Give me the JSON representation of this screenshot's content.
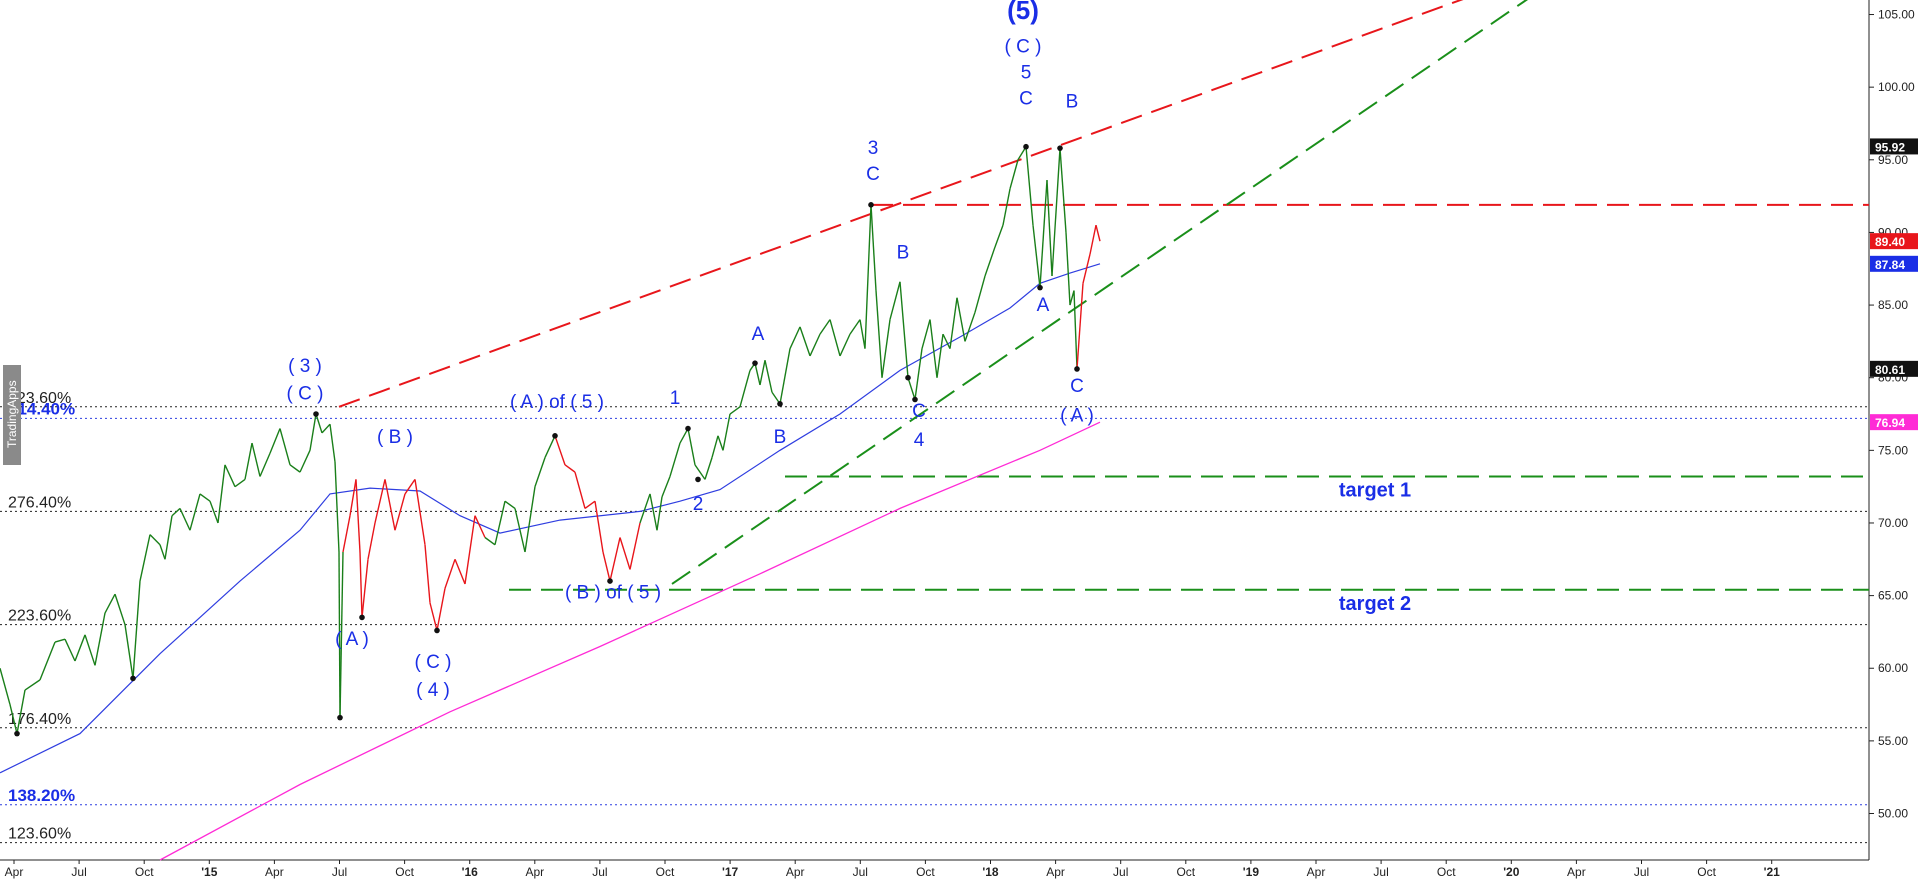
{
  "watermark": "TradingApps",
  "chart_data": {
    "type": "line",
    "title": "",
    "xlabel": "",
    "ylabel": "",
    "ylim": [
      46.8,
      106.0
    ],
    "x_ticks": [
      "Apr",
      "Jul",
      "Oct",
      "'15",
      "Apr",
      "Jul",
      "Oct",
      "'16",
      "Apr",
      "Jul",
      "Oct",
      "'17",
      "Apr",
      "Jul",
      "Oct",
      "'18",
      "Apr",
      "Jul",
      "Oct",
      "'19",
      "Apr",
      "Jul",
      "Oct",
      "'20",
      "Apr",
      "Jul",
      "Oct",
      "'21"
    ],
    "y_ticks": [
      50,
      55,
      60,
      65,
      70,
      75,
      80,
      85,
      90,
      95,
      100,
      105
    ],
    "y_tick_labels": [
      "50.00",
      "55.00",
      "60.00",
      "65.00",
      "70.00",
      "75.00",
      "80.00",
      "85.00",
      "90.00",
      "95.00",
      "100.00",
      "105.00"
    ],
    "price_tags": [
      {
        "label": "95.92",
        "value": 95.92,
        "color": "#111111"
      },
      {
        "label": "89.40",
        "value": 89.4,
        "color": "#e8161b"
      },
      {
        "label": "87.84",
        "value": 87.84,
        "color": "#1a2ee6"
      },
      {
        "label": "80.61",
        "value": 80.61,
        "color": "#111111"
      },
      {
        "label": "76.94",
        "value": 76.94,
        "color": "#ff2bd6"
      }
    ],
    "fib_levels": [
      {
        "label": "314.40%",
        "value": 77.2,
        "style": "blue"
      },
      {
        "label": "323.60%",
        "value": 78.0,
        "style": "black"
      },
      {
        "label": "276.40%",
        "value": 70.8,
        "style": "black"
      },
      {
        "label": "223.60%",
        "value": 63.0,
        "style": "black"
      },
      {
        "label": "176.40%",
        "value": 55.9,
        "style": "black"
      },
      {
        "label": "138.20%",
        "value": 50.6,
        "style": "blue"
      },
      {
        "label": "123.60%",
        "value": 48.0,
        "style": "black"
      }
    ],
    "targets": [
      {
        "label": "target 1",
        "value": 73.2
      },
      {
        "label": "target 2",
        "value": 65.4
      }
    ],
    "resistance_value": 91.9,
    "price_series": [
      {
        "t": 0,
        "v": 60.0
      },
      {
        "t": 10,
        "v": 57.5
      },
      {
        "t": 17,
        "v": 55.5
      },
      {
        "t": 25,
        "v": 58.5
      },
      {
        "t": 40,
        "v": 59.2
      },
      {
        "t": 55,
        "v": 61.8
      },
      {
        "t": 65,
        "v": 62.0
      },
      {
        "t": 75,
        "v": 60.5
      },
      {
        "t": 85,
        "v": 62.3
      },
      {
        "t": 95,
        "v": 60.2
      },
      {
        "t": 105,
        "v": 63.8
      },
      {
        "t": 115,
        "v": 65.1
      },
      {
        "t": 125,
        "v": 63.0
      },
      {
        "t": 133,
        "v": 59.3
      },
      {
        "t": 140,
        "v": 66.0
      },
      {
        "t": 150,
        "v": 69.2
      },
      {
        "t": 160,
        "v": 68.5
      },
      {
        "t": 165,
        "v": 67.5
      },
      {
        "t": 172,
        "v": 70.5
      },
      {
        "t": 180,
        "v": 71.0
      },
      {
        "t": 190,
        "v": 69.5
      },
      {
        "t": 200,
        "v": 72.0
      },
      {
        "t": 210,
        "v": 71.5
      },
      {
        "t": 218,
        "v": 70.0
      },
      {
        "t": 225,
        "v": 74.0
      },
      {
        "t": 235,
        "v": 72.5
      },
      {
        "t": 245,
        "v": 73.0
      },
      {
        "t": 252,
        "v": 75.5
      },
      {
        "t": 260,
        "v": 73.2
      },
      {
        "t": 270,
        "v": 74.8
      },
      {
        "t": 280,
        "v": 76.5
      },
      {
        "t": 290,
        "v": 74.0
      },
      {
        "t": 300,
        "v": 73.5
      },
      {
        "t": 310,
        "v": 75.0
      },
      {
        "t": 316,
        "v": 77.5
      },
      {
        "t": 322,
        "v": 76.2
      },
      {
        "t": 330,
        "v": 76.8
      },
      {
        "t": 335,
        "v": 74.2
      },
      {
        "t": 339,
        "v": 68.0
      },
      {
        "t": 340,
        "v": 56.6
      },
      {
        "t": 343,
        "v": 68.0
      },
      {
        "t": 350,
        "v": 70.5
      },
      {
        "t": 356,
        "v": 73.0
      },
      {
        "t": 360,
        "v": 68.0
      },
      {
        "t": 362,
        "v": 63.5
      },
      {
        "t": 368,
        "v": 67.5
      },
      {
        "t": 375,
        "v": 70.0
      },
      {
        "t": 385,
        "v": 73.0
      },
      {
        "t": 395,
        "v": 69.5
      },
      {
        "t": 405,
        "v": 72.0
      },
      {
        "t": 415,
        "v": 73.0
      },
      {
        "t": 425,
        "v": 68.5
      },
      {
        "t": 430,
        "v": 64.5
      },
      {
        "t": 437,
        "v": 62.6
      },
      {
        "t": 445,
        "v": 65.5
      },
      {
        "t": 455,
        "v": 67.5
      },
      {
        "t": 465,
        "v": 65.8
      },
      {
        "t": 475,
        "v": 70.5
      },
      {
        "t": 485,
        "v": 69.0
      },
      {
        "t": 495,
        "v": 68.5
      },
      {
        "t": 505,
        "v": 71.5
      },
      {
        "t": 515,
        "v": 71.0
      },
      {
        "t": 525,
        "v": 68.0
      },
      {
        "t": 535,
        "v": 72.5
      },
      {
        "t": 545,
        "v": 74.5
      },
      {
        "t": 555,
        "v": 76.0
      },
      {
        "t": 565,
        "v": 74.0
      },
      {
        "t": 575,
        "v": 73.5
      },
      {
        "t": 585,
        "v": 71.0
      },
      {
        "t": 595,
        "v": 71.5
      },
      {
        "t": 603,
        "v": 68.0
      },
      {
        "t": 610,
        "v": 66.0
      },
      {
        "t": 620,
        "v": 69.0
      },
      {
        "t": 630,
        "v": 66.8
      },
      {
        "t": 640,
        "v": 70.0
      },
      {
        "t": 650,
        "v": 72.0
      },
      {
        "t": 657,
        "v": 69.5
      },
      {
        "t": 662,
        "v": 71.8
      },
      {
        "t": 670,
        "v": 73.2
      },
      {
        "t": 680,
        "v": 75.5
      },
      {
        "t": 688,
        "v": 76.5
      },
      {
        "t": 695,
        "v": 74.0
      },
      {
        "t": 705,
        "v": 73.0
      },
      {
        "t": 712,
        "v": 74.5
      },
      {
        "t": 718,
        "v": 76.0
      },
      {
        "t": 723,
        "v": 75.0
      },
      {
        "t": 730,
        "v": 77.5
      },
      {
        "t": 740,
        "v": 78.0
      },
      {
        "t": 750,
        "v": 80.5
      },
      {
        "t": 755,
        "v": 81.0
      },
      {
        "t": 760,
        "v": 79.5
      },
      {
        "t": 765,
        "v": 81.2
      },
      {
        "t": 772,
        "v": 79.0
      },
      {
        "t": 780,
        "v": 78.2
      },
      {
        "t": 790,
        "v": 82.0
      },
      {
        "t": 800,
        "v": 83.5
      },
      {
        "t": 810,
        "v": 81.5
      },
      {
        "t": 820,
        "v": 83.0
      },
      {
        "t": 830,
        "v": 84.0
      },
      {
        "t": 840,
        "v": 81.5
      },
      {
        "t": 850,
        "v": 83.0
      },
      {
        "t": 860,
        "v": 84.0
      },
      {
        "t": 865,
        "v": 82.0
      },
      {
        "t": 871,
        "v": 91.9
      },
      {
        "t": 876,
        "v": 86.0
      },
      {
        "t": 882,
        "v": 80.0
      },
      {
        "t": 890,
        "v": 84.0
      },
      {
        "t": 900,
        "v": 86.6
      },
      {
        "t": 908,
        "v": 80.0
      },
      {
        "t": 915,
        "v": 78.5
      },
      {
        "t": 922,
        "v": 82.0
      },
      {
        "t": 930,
        "v": 84.0
      },
      {
        "t": 937,
        "v": 80.0
      },
      {
        "t": 943,
        "v": 83.0
      },
      {
        "t": 950,
        "v": 82.0
      },
      {
        "t": 957,
        "v": 85.5
      },
      {
        "t": 965,
        "v": 82.5
      },
      {
        "t": 975,
        "v": 84.5
      },
      {
        "t": 985,
        "v": 87.0
      },
      {
        "t": 995,
        "v": 89.0
      },
      {
        "t": 1003,
        "v": 90.5
      },
      {
        "t": 1010,
        "v": 93.0
      },
      {
        "t": 1018,
        "v": 95.0
      },
      {
        "t": 1026,
        "v": 95.9
      },
      {
        "t": 1033,
        "v": 90.5
      },
      {
        "t": 1040,
        "v": 86.2
      },
      {
        "t": 1047,
        "v": 93.6
      },
      {
        "t": 1052,
        "v": 87.0
      },
      {
        "t": 1060,
        "v": 95.8
      },
      {
        "t": 1066,
        "v": 90.0
      },
      {
        "t": 1070,
        "v": 85.0
      },
      {
        "t": 1074,
        "v": 86.0
      },
      {
        "t": 1077,
        "v": 80.6
      },
      {
        "t": 1083,
        "v": 86.5
      },
      {
        "t": 1090,
        "v": 88.5
      },
      {
        "t": 1096,
        "v": 90.5
      },
      {
        "t": 1100,
        "v": 89.4
      }
    ],
    "ma_blue": [
      {
        "t": 0,
        "v": 52.8
      },
      {
        "t": 80,
        "v": 55.5
      },
      {
        "t": 160,
        "v": 61.0
      },
      {
        "t": 240,
        "v": 66.0
      },
      {
        "t": 300,
        "v": 69.5
      },
      {
        "t": 330,
        "v": 72.0
      },
      {
        "t": 370,
        "v": 72.4
      },
      {
        "t": 420,
        "v": 72.2
      },
      {
        "t": 460,
        "v": 70.5
      },
      {
        "t": 500,
        "v": 69.3
      },
      {
        "t": 560,
        "v": 70.2
      },
      {
        "t": 640,
        "v": 70.8
      },
      {
        "t": 680,
        "v": 71.5
      },
      {
        "t": 720,
        "v": 72.3
      },
      {
        "t": 780,
        "v": 75.0
      },
      {
        "t": 840,
        "v": 77.5
      },
      {
        "t": 900,
        "v": 80.5
      },
      {
        "t": 960,
        "v": 82.8
      },
      {
        "t": 1010,
        "v": 84.8
      },
      {
        "t": 1040,
        "v": 86.5
      },
      {
        "t": 1070,
        "v": 87.2
      },
      {
        "t": 1100,
        "v": 87.84
      }
    ],
    "ma_pink": [
      {
        "t": 160,
        "v": 46.8
      },
      {
        "t": 300,
        "v": 52.0
      },
      {
        "t": 450,
        "v": 57.0
      },
      {
        "t": 600,
        "v": 61.5
      },
      {
        "t": 760,
        "v": 66.5
      },
      {
        "t": 900,
        "v": 71.0
      },
      {
        "t": 1040,
        "v": 75.0
      },
      {
        "t": 1100,
        "v": 76.94
      }
    ],
    "annotations": [
      {
        "id": "wave-5",
        "text": "(5)",
        "t": 1023,
        "v": 104.7,
        "size": 26,
        "bold": true
      },
      {
        "id": "wave-c-paren-top",
        "text": "( C )",
        "t": 1023,
        "v": 102.4,
        "size": 19,
        "bold": false
      },
      {
        "id": "wave-5-minor",
        "text": "5",
        "t": 1026,
        "v": 100.6,
        "size": 19,
        "bold": false
      },
      {
        "id": "wave-c-top",
        "text": "C",
        "t": 1026,
        "v": 98.8,
        "size": 19,
        "bold": false
      },
      {
        "id": "wave-b-top",
        "text": "B",
        "t": 1072,
        "v": 98.6,
        "size": 19,
        "bold": false
      },
      {
        "id": "wave-3",
        "text": "3",
        "t": 873,
        "v": 95.4,
        "size": 19,
        "bold": false
      },
      {
        "id": "wave-c-3",
        "text": "C",
        "t": 873,
        "v": 93.6,
        "size": 19,
        "bold": false
      },
      {
        "id": "wave-b-mid",
        "text": "B",
        "t": 903,
        "v": 88.2,
        "size": 19,
        "bold": false
      },
      {
        "id": "wave-a-right",
        "text": "A",
        "t": 1043,
        "v": 84.6,
        "size": 19,
        "bold": false
      },
      {
        "id": "wave-c-right",
        "text": "C",
        "t": 1077,
        "v": 79.0,
        "size": 19,
        "bold": false
      },
      {
        "id": "wave-a-paren-right",
        "text": "( A )",
        "t": 1077,
        "v": 77.0,
        "size": 19,
        "bold": false
      },
      {
        "id": "wave-c-4",
        "text": "C",
        "t": 919,
        "v": 77.3,
        "size": 19,
        "bold": false
      },
      {
        "id": "wave-4",
        "text": "4",
        "t": 919,
        "v": 75.3,
        "size": 19,
        "bold": false
      },
      {
        "id": "wave-a-mid",
        "text": "A",
        "t": 758,
        "v": 82.6,
        "size": 19,
        "bold": false
      },
      {
        "id": "wave-b-low",
        "text": "B",
        "t": 780,
        "v": 75.5,
        "size": 19,
        "bold": false
      },
      {
        "id": "wave-1",
        "text": "1",
        "t": 675,
        "v": 78.2,
        "size": 19,
        "bold": false
      },
      {
        "id": "wave-2",
        "text": "2",
        "t": 698,
        "v": 70.9,
        "size": 19,
        "bold": false
      },
      {
        "id": "wave-a-of-5",
        "text": "( A ) of ( 5 )",
        "t": 557,
        "v": 77.9,
        "size": 19,
        "bold": false
      },
      {
        "id": "wave-b-of-5",
        "text": "( B ) of ( 5 )",
        "t": 613,
        "v": 64.8,
        "size": 19,
        "bold": false
      },
      {
        "id": "wave-3-paren",
        "text": "( 3 )",
        "t": 305,
        "v": 80.4,
        "size": 19,
        "bold": false
      },
      {
        "id": "wave-c-paren-left",
        "text": "( C )",
        "t": 305,
        "v": 78.5,
        "size": 19,
        "bold": false
      },
      {
        "id": "wave-b-paren",
        "text": "( B )",
        "t": 395,
        "v": 75.5,
        "size": 19,
        "bold": false
      },
      {
        "id": "wave-a-paren-left",
        "text": "( A )",
        "t": 352,
        "v": 61.6,
        "size": 19,
        "bold": false
      },
      {
        "id": "wave-c-paren-low",
        "text": "( C )",
        "t": 433,
        "v": 60.0,
        "size": 19,
        "bold": false
      },
      {
        "id": "wave-4-paren",
        "text": "( 4 )",
        "t": 433,
        "v": 58.1,
        "size": 19,
        "bold": false
      }
    ],
    "colors": {
      "up": "#1a7f1a",
      "down": "#e8161b",
      "wave_labels": "#1a2ee6",
      "ma_blue": "#2f3ee0",
      "ma_pink": "#ff2bd6",
      "red_channel": "#e8161b",
      "green_channel": "#1a8f1a"
    }
  }
}
